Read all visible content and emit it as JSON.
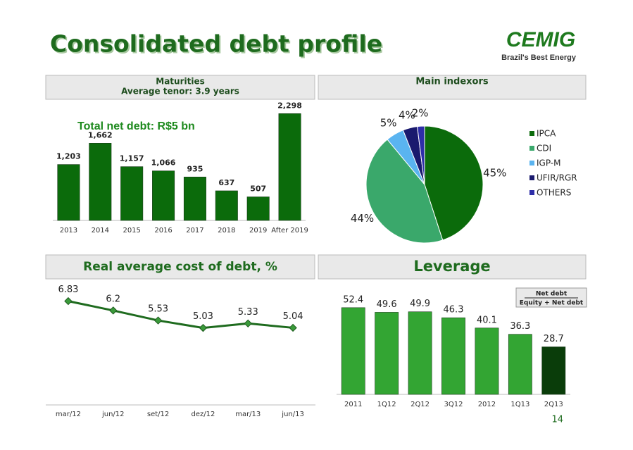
{
  "title": "Consolidated debt profile",
  "logo": {
    "name": "CEMIG",
    "tagline": "Brazil's Best Energy"
  },
  "page_number": "14",
  "chart_data": [
    {
      "type": "bar",
      "header": "Maturities",
      "subheader": "Average tenor: 3.9 years",
      "title": "Total net debt: R$5 bn",
      "categories": [
        "2013",
        "2014",
        "2015",
        "2016",
        "2017",
        "2018",
        "2019",
        "After 2019"
      ],
      "values": [
        1203,
        1662,
        1157,
        1066,
        935,
        637,
        507,
        2298
      ],
      "value_labels": [
        "1,203",
        "1,662",
        "1,157",
        "1,066",
        "935",
        "637",
        "507",
        "2,298"
      ],
      "color": "#0b6b0b",
      "ylim": [
        0,
        2500
      ]
    },
    {
      "type": "pie",
      "header": "Main indexors",
      "categories": [
        "IPCA",
        "CDI",
        "IGP-M",
        "UFIR/RGR",
        "OTHERS"
      ],
      "values": [
        45,
        44,
        5,
        4,
        2
      ],
      "value_labels": [
        "45%",
        "44%",
        "5%",
        "4%",
        "2%"
      ],
      "colors": [
        "#0b6b0b",
        "#3aa86b",
        "#5ab4f0",
        "#1a1a6e",
        "#2e2ea8"
      ],
      "legend": "right"
    },
    {
      "type": "line",
      "header": "Real average cost of debt, %",
      "categories": [
        "mar/12",
        "jun/12",
        "set/12",
        "dez/12",
        "mar/13",
        "jun/13"
      ],
      "values": [
        6.83,
        6.2,
        5.53,
        5.03,
        5.33,
        5.04
      ],
      "color": "#1e6b1e",
      "ylim": [
        0,
        7
      ]
    },
    {
      "type": "bar",
      "header": "Leverage",
      "legend_numerator": "Net debt",
      "legend_denominator": "Equity + Net debt",
      "categories": [
        "2011",
        "1Q12",
        "2Q12",
        "3Q12",
        "2012",
        "1Q13",
        "2Q13"
      ],
      "values": [
        52.4,
        49.6,
        49.9,
        46.3,
        40.1,
        36.3,
        28.7
      ],
      "colors": [
        "#33a533",
        "#33a533",
        "#33a533",
        "#33a533",
        "#33a533",
        "#33a533",
        "#0a3d0a"
      ],
      "ylim": [
        0,
        60
      ]
    }
  ]
}
